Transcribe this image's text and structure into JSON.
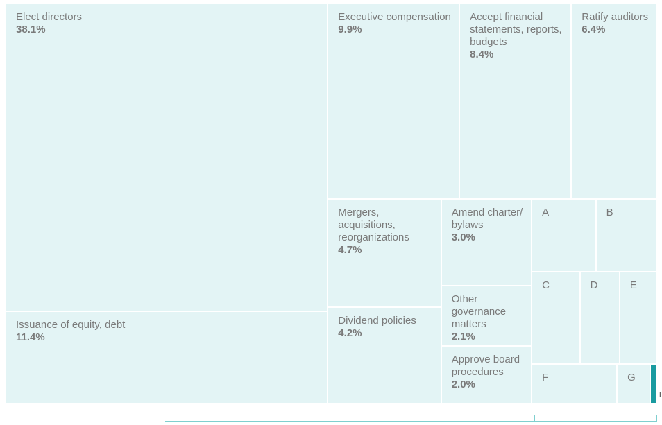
{
  "chart_data": {
    "type": "treemap",
    "categories": [
      "Elect directors",
      "Executive compensation",
      "Accept financial statements, reports, budgets",
      "Ratify auditors",
      "Issuance of equity, debt",
      "Mergers, acquisitions, reorganizations",
      "Dividend policies",
      "Amend charter/ bylaws",
      "Other governance matters",
      "Approve board procedures",
      "A",
      "B",
      "C",
      "D",
      "E",
      "F",
      "G",
      "H"
    ],
    "values": [
      38.1,
      9.9,
      8.4,
      6.4,
      11.4,
      4.7,
      4.2,
      3.0,
      2.1,
      2.0,
      1.8,
      1.7,
      1.7,
      1.4,
      1.3,
      1.3,
      0.5,
      0.1
    ],
    "value_labels": [
      "38.1%",
      "9.9%",
      "8.4%",
      "6.4%",
      "11.4%",
      "4.7%",
      "4.2%",
      "3.0%",
      "2.1%",
      "2.0%",
      null,
      null,
      null,
      null,
      null,
      null,
      null,
      null
    ],
    "colors": [
      "#e3f4f5",
      "#e3f4f5",
      "#e3f4f5",
      "#e3f4f5",
      "#e3f4f5",
      "#e3f4f5",
      "#e3f4f5",
      "#e3f4f5",
      "#e3f4f5",
      "#e3f4f5",
      "#e3f4f5",
      "#e3f4f5",
      "#e3f4f5",
      "#e3f4f5",
      "#e3f4f5",
      "#e3f4f5",
      "#e3f4f5",
      "#1a9ba0"
    ]
  }
}
